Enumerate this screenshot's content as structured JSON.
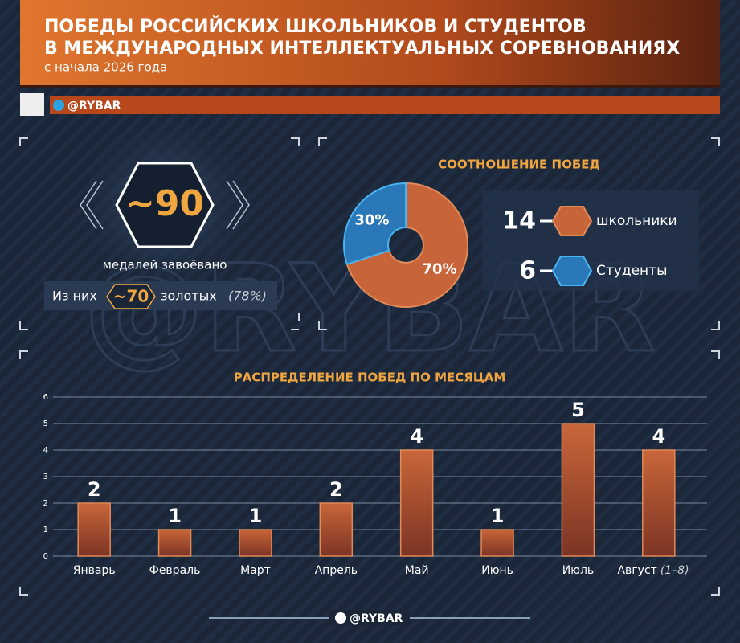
{
  "header": {
    "title_line1": "ПОБЕДЫ РОССИЙСКИХ ШКОЛЬНИКОВ И СТУДЕНТОВ",
    "title_line2": "В МЕЖДУНАРОДНЫХ ИНТЕЛЛЕКТУАЛЬНЫХ СОРЕВНОВАНИЯХ",
    "subtitle": "с начала 2026 года",
    "handle": "@RYBAR"
  },
  "watermark": "@RYBAR",
  "medals": {
    "total": "~90",
    "caption": "медалей завоёвано",
    "gold_prefix": "Из них",
    "gold": "~70",
    "gold_suffix": "золотых",
    "gold_share": "(78%)"
  },
  "chart_data": [
    {
      "type": "pie",
      "title": "СООТНОШЕНИЕ ПОБЕД",
      "categories": [
        "школьники",
        "Студенты"
      ],
      "values": [
        70,
        30
      ],
      "value_labels": [
        "70%",
        "30%"
      ],
      "counts": [
        14,
        6
      ],
      "colors": [
        "#c8643a",
        "#2a78b8"
      ]
    },
    {
      "type": "bar",
      "title": "РАСПРЕДЕЛЕНИЕ ПОБЕД ПО МЕСЯЦАМ",
      "categories": [
        "Январь",
        "Февраль",
        "Март",
        "Апрель",
        "Май",
        "Июнь",
        "Июль",
        "Август"
      ],
      "last_category_note": "(1–8)",
      "values": [
        2,
        1,
        1,
        2,
        4,
        1,
        5,
        4
      ],
      "color": "#b85a34",
      "ylim": [
        0,
        6
      ],
      "yticks": [
        0,
        1,
        2,
        3,
        4,
        5,
        6
      ],
      "grid": true
    }
  ],
  "footer": {
    "handle": "@RYBAR"
  }
}
